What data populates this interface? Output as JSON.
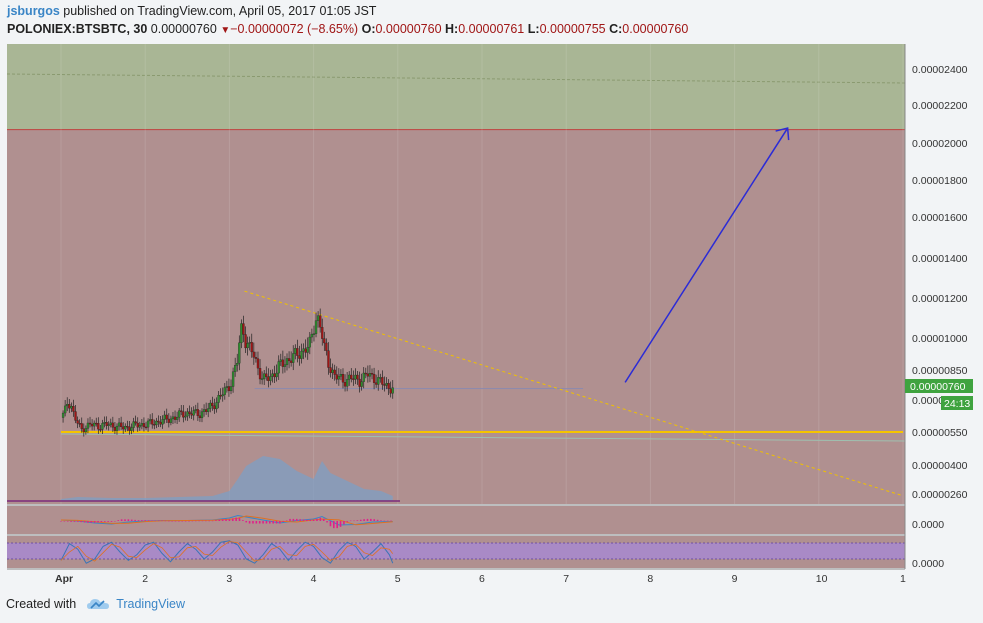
{
  "header": {
    "author": "jsburgos",
    "published_text": "published on TradingView.com, April 05, 2017 01:05 JST",
    "symbol": "POLONIEX:BTSBTC, 30",
    "last": "0.00000760",
    "change": "−0.00000072 (−8.65%)",
    "o_label": "O:",
    "o_value": "0.00000760",
    "h_label": "H:",
    "h_value": "0.00000761",
    "l_label": "L:",
    "l_value": "0.00000755",
    "c_label": "C:",
    "c_value": "0.00000760"
  },
  "footer": {
    "created_with": "Created with",
    "brand": "TradingView"
  },
  "price_badge": {
    "value": "0.00000760",
    "countdown": "24:13"
  },
  "colors": {
    "up": "#2e8b2e",
    "down": "#a01616",
    "zone_red": "#b09090",
    "zone_green": "#a9b695",
    "arrow": "#2b2bd6",
    "trendline": "#f0c000",
    "support": "#f5c400",
    "badge": "#3fa33f"
  },
  "chart_data": {
    "type": "candlestick",
    "symbol": "POLONIEX:BTSBTC",
    "interval": "30",
    "y_axis_labels": [
      "0.00002400",
      "0.00002200",
      "0.00002000",
      "0.00001800",
      "0.00001600",
      "0.00001400",
      "0.00001200",
      "0.00001000",
      "0.00000850",
      "0.00000760",
      "0.0000",
      "0.00000550",
      "0.00000400",
      "0.00000260"
    ],
    "x_axis_labels": [
      "Apr",
      "2",
      "3",
      "4",
      "5",
      "6",
      "7",
      "8",
      "9",
      "10",
      "1"
    ],
    "macd_axis_label": "0.0000",
    "osc_axis_label": "0.0000",
    "last_price": 7.6e-06,
    "support_level": 5.5e-06,
    "zones": [
      {
        "name": "green",
        "from": 2.29e-05,
        "to": 2.6e-05
      },
      {
        "name": "red",
        "from": 2.4e-06,
        "to": 2.29e-05
      }
    ],
    "price_path": [
      [
        0.0,
        6.2e-06
      ],
      [
        0.04,
        6.4e-06
      ],
      [
        0.08,
        7e-06
      ],
      [
        0.12,
        6.8e-06
      ],
      [
        0.16,
        6.2e-06
      ],
      [
        0.2,
        5.9e-06
      ],
      [
        0.24,
        5.6e-06
      ],
      [
        0.28,
        5.75e-06
      ],
      [
        0.35,
        5.85e-06
      ],
      [
        0.45,
        5.8e-06
      ],
      [
        0.55,
        5.85e-06
      ],
      [
        0.65,
        5.78e-06
      ],
      [
        0.75,
        5.7e-06
      ],
      [
        0.85,
        5.8e-06
      ],
      [
        0.95,
        5.85e-06
      ],
      [
        1.05,
        5.9e-06
      ],
      [
        1.15,
        6e-06
      ],
      [
        1.25,
        6.1e-06
      ],
      [
        1.35,
        6.2e-06
      ],
      [
        1.45,
        6.4e-06
      ],
      [
        1.55,
        6.4e-06
      ],
      [
        1.65,
        6.4e-06
      ],
      [
        1.75,
        6.6e-06
      ],
      [
        1.85,
        7e-06
      ],
      [
        1.95,
        7.5e-06
      ],
      [
        2.02,
        7.9e-06
      ],
      [
        2.1,
        9e-06
      ],
      [
        2.15,
        1.1e-05
      ],
      [
        2.18,
        1e-05
      ],
      [
        2.22,
        9.6e-06
      ],
      [
        2.28,
        9.3e-06
      ],
      [
        2.35,
        8.5e-06
      ],
      [
        2.4,
        8e-06
      ],
      [
        2.5,
        8.2e-06
      ],
      [
        2.6,
        8.7e-06
      ],
      [
        2.7,
        9e-06
      ],
      [
        2.8,
        9.2e-06
      ],
      [
        2.9,
        9.5e-06
      ],
      [
        2.95,
        9.6e-06
      ],
      [
        3.0,
        1.05e-05
      ],
      [
        3.04,
        1.15e-05
      ],
      [
        3.08,
        1.07e-05
      ],
      [
        3.12,
        9.6e-06
      ],
      [
        3.18,
        8.8e-06
      ],
      [
        3.25,
        8.2e-06
      ],
      [
        3.35,
        8e-06
      ],
      [
        3.45,
        8.1e-06
      ],
      [
        3.55,
        8e-06
      ],
      [
        3.65,
        8.3e-06
      ],
      [
        3.72,
        8.1e-06
      ],
      [
        3.8,
        7.9e-06
      ],
      [
        3.88,
        7.7e-06
      ],
      [
        3.94,
        7.6e-06
      ]
    ],
    "volume_path": [
      [
        0.0,
        0.02
      ],
      [
        0.2,
        0.04
      ],
      [
        0.6,
        0.03
      ],
      [
        1.0,
        0.03
      ],
      [
        1.4,
        0.04
      ],
      [
        1.8,
        0.05
      ],
      [
        2.0,
        0.1
      ],
      [
        2.1,
        0.22
      ],
      [
        2.2,
        0.35
      ],
      [
        2.4,
        0.45
      ],
      [
        2.6,
        0.42
      ],
      [
        2.8,
        0.3
      ],
      [
        3.0,
        0.22
      ],
      [
        3.1,
        0.4
      ],
      [
        3.2,
        0.28
      ],
      [
        3.4,
        0.2
      ],
      [
        3.6,
        0.12
      ],
      [
        3.8,
        0.1
      ],
      [
        3.94,
        0.05
      ]
    ],
    "macd_path": [
      [
        0.0,
        0.1
      ],
      [
        0.2,
        0.0
      ],
      [
        0.4,
        -0.2
      ],
      [
        0.6,
        -0.3
      ],
      [
        0.8,
        -0.1
      ],
      [
        1.0,
        0.0
      ],
      [
        1.2,
        0.05
      ],
      [
        1.5,
        0.05
      ],
      [
        1.8,
        0.1
      ],
      [
        2.0,
        0.3
      ],
      [
        2.1,
        0.55
      ],
      [
        2.2,
        0.4
      ],
      [
        2.4,
        0.1
      ],
      [
        2.6,
        -0.2
      ],
      [
        2.8,
        0.05
      ],
      [
        3.0,
        0.2
      ],
      [
        3.1,
        0.45
      ],
      [
        3.3,
        -0.4
      ],
      [
        3.5,
        -0.35
      ],
      [
        3.7,
        -0.1
      ],
      [
        3.94,
        -0.05
      ]
    ],
    "osc_path": [
      [
        0.0,
        0.2
      ],
      [
        0.1,
        0.8
      ],
      [
        0.2,
        0.6
      ],
      [
        0.3,
        0.1
      ],
      [
        0.4,
        0.25
      ],
      [
        0.5,
        0.7
      ],
      [
        0.6,
        0.85
      ],
      [
        0.7,
        0.5
      ],
      [
        0.8,
        0.2
      ],
      [
        0.9,
        0.4
      ],
      [
        1.0,
        0.75
      ],
      [
        1.1,
        0.85
      ],
      [
        1.2,
        0.45
      ],
      [
        1.3,
        0.15
      ],
      [
        1.4,
        0.5
      ],
      [
        1.5,
        0.8
      ],
      [
        1.6,
        0.6
      ],
      [
        1.7,
        0.25
      ],
      [
        1.8,
        0.5
      ],
      [
        1.9,
        0.85
      ],
      [
        2.0,
        0.9
      ],
      [
        2.1,
        0.75
      ],
      [
        2.2,
        0.25
      ],
      [
        2.3,
        0.1
      ],
      [
        2.4,
        0.4
      ],
      [
        2.5,
        0.8
      ],
      [
        2.6,
        0.6
      ],
      [
        2.7,
        0.2
      ],
      [
        2.8,
        0.55
      ],
      [
        2.9,
        0.85
      ],
      [
        3.0,
        0.7
      ],
      [
        3.1,
        0.3
      ],
      [
        3.2,
        0.1
      ],
      [
        3.3,
        0.55
      ],
      [
        3.4,
        0.85
      ],
      [
        3.5,
        0.7
      ],
      [
        3.6,
        0.25
      ],
      [
        3.7,
        0.5
      ],
      [
        3.8,
        0.8
      ],
      [
        3.9,
        0.4
      ],
      [
        3.94,
        0.1
      ]
    ],
    "drawings": {
      "resistance_trendline": {
        "from": [
          2.18,
          1.29e-05
        ],
        "to": [
          10.0,
          2.6e-06
        ]
      },
      "projection_arrow": {
        "from": [
          6.7,
          7.9e-06
        ],
        "to": [
          8.63,
          2.3e-05
        ]
      },
      "support_line": {
        "from": [
          0.0,
          5.5e-06
        ],
        "to": [
          10.0,
          5.5e-06
        ]
      }
    }
  }
}
